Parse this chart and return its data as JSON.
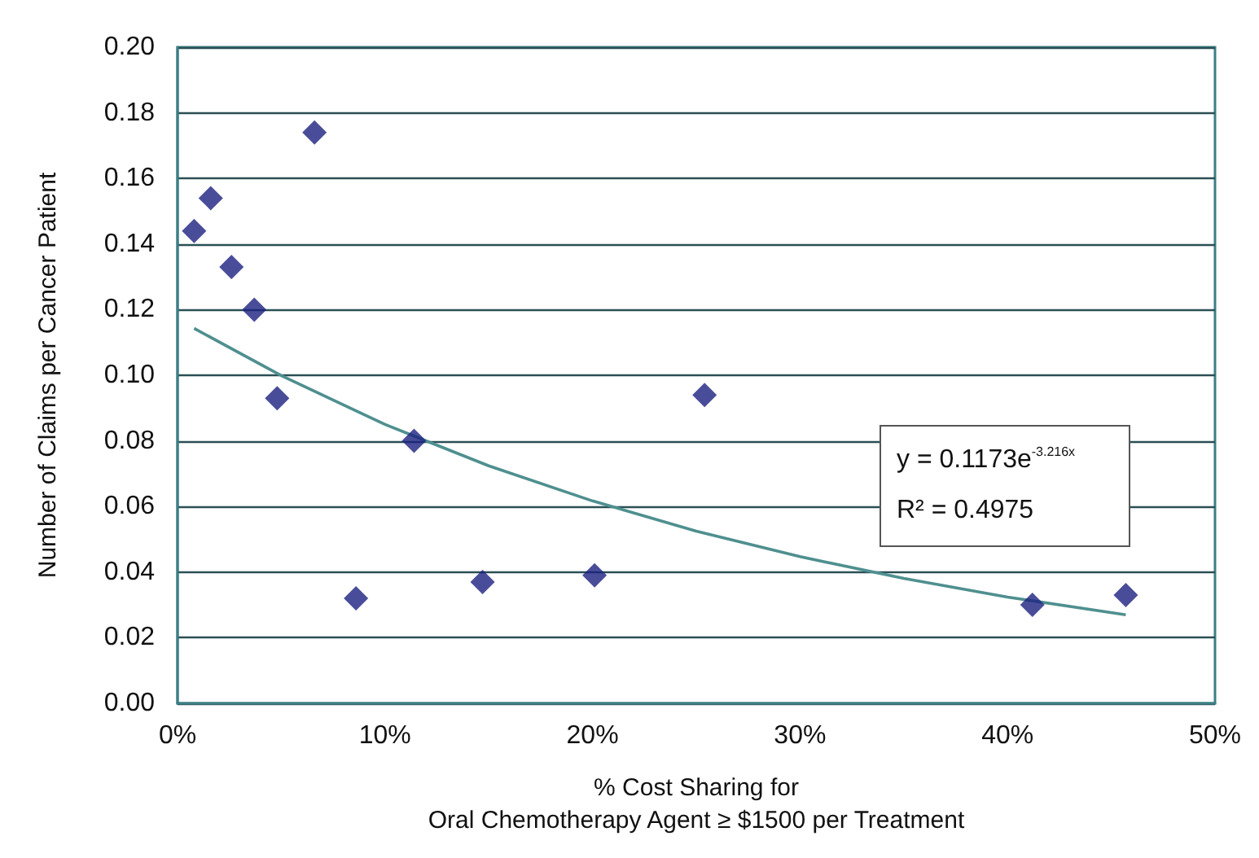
{
  "chart_data": {
    "type": "scatter",
    "xlabel": "% Cost Sharing for\nOral Chemotherapy Agent ≥ $1500 per Treatment",
    "ylabel": "Number of Claims per Cancer Patient",
    "x": [
      0.8,
      1.6,
      2.6,
      3.7,
      4.8,
      6.6,
      8.6,
      11.4,
      14.7,
      20.1,
      25.4,
      41.2,
      45.7
    ],
    "series": [
      {
        "color": "#1c2080",
        "marker": "diamond",
        "values": [
          0.144,
          0.154,
          0.133,
          0.12,
          0.093,
          0.174,
          0.032,
          0.08,
          0.037,
          0.039,
          0.094,
          0.03,
          0.033
        ]
      },
      {
        "type": "line",
        "color": "#4f8f8f",
        "marker": "none",
        "line_style": "solid",
        "x": [
          0.8,
          5,
          10,
          15,
          20,
          25,
          30,
          35,
          40,
          45.7
        ],
        "values": [
          0.1143,
          0.0999,
          0.085,
          0.0724,
          0.0617,
          0.0525,
          0.0447,
          0.0381,
          0.0324,
          0.027
        ]
      }
    ],
    "xlim": [
      0,
      50
    ],
    "xticks": [
      {
        "value": 0,
        "label": "0%"
      },
      {
        "value": 10,
        "label": "10%"
      },
      {
        "value": 20,
        "label": "20%"
      },
      {
        "value": 30,
        "label": "30%"
      },
      {
        "value": 40,
        "label": "40%"
      },
      {
        "value": 50,
        "label": "50%"
      }
    ],
    "ylim": [
      0,
      0.2
    ],
    "yticks": [
      {
        "value": 0,
        "label": "0.00"
      },
      {
        "value": 0.02,
        "label": "0.02"
      },
      {
        "value": 0.04,
        "label": "0.04"
      },
      {
        "value": 0.06,
        "label": "0.06"
      },
      {
        "value": 0.08,
        "label": "0.08"
      },
      {
        "value": 0.1,
        "label": "0.10"
      },
      {
        "value": 0.12,
        "label": "0.12"
      },
      {
        "value": 0.14,
        "label": "0.14"
      },
      {
        "value": 0.16,
        "label": "0.16"
      },
      {
        "value": 0.18,
        "label": "0.18"
      },
      {
        "value": 0.2,
        "label": "0.20"
      }
    ],
    "grid": "y",
    "annotations": [
      "y = 0.1173e$^{-3.216x}$",
      "R² = 0.4975"
    ]
  }
}
